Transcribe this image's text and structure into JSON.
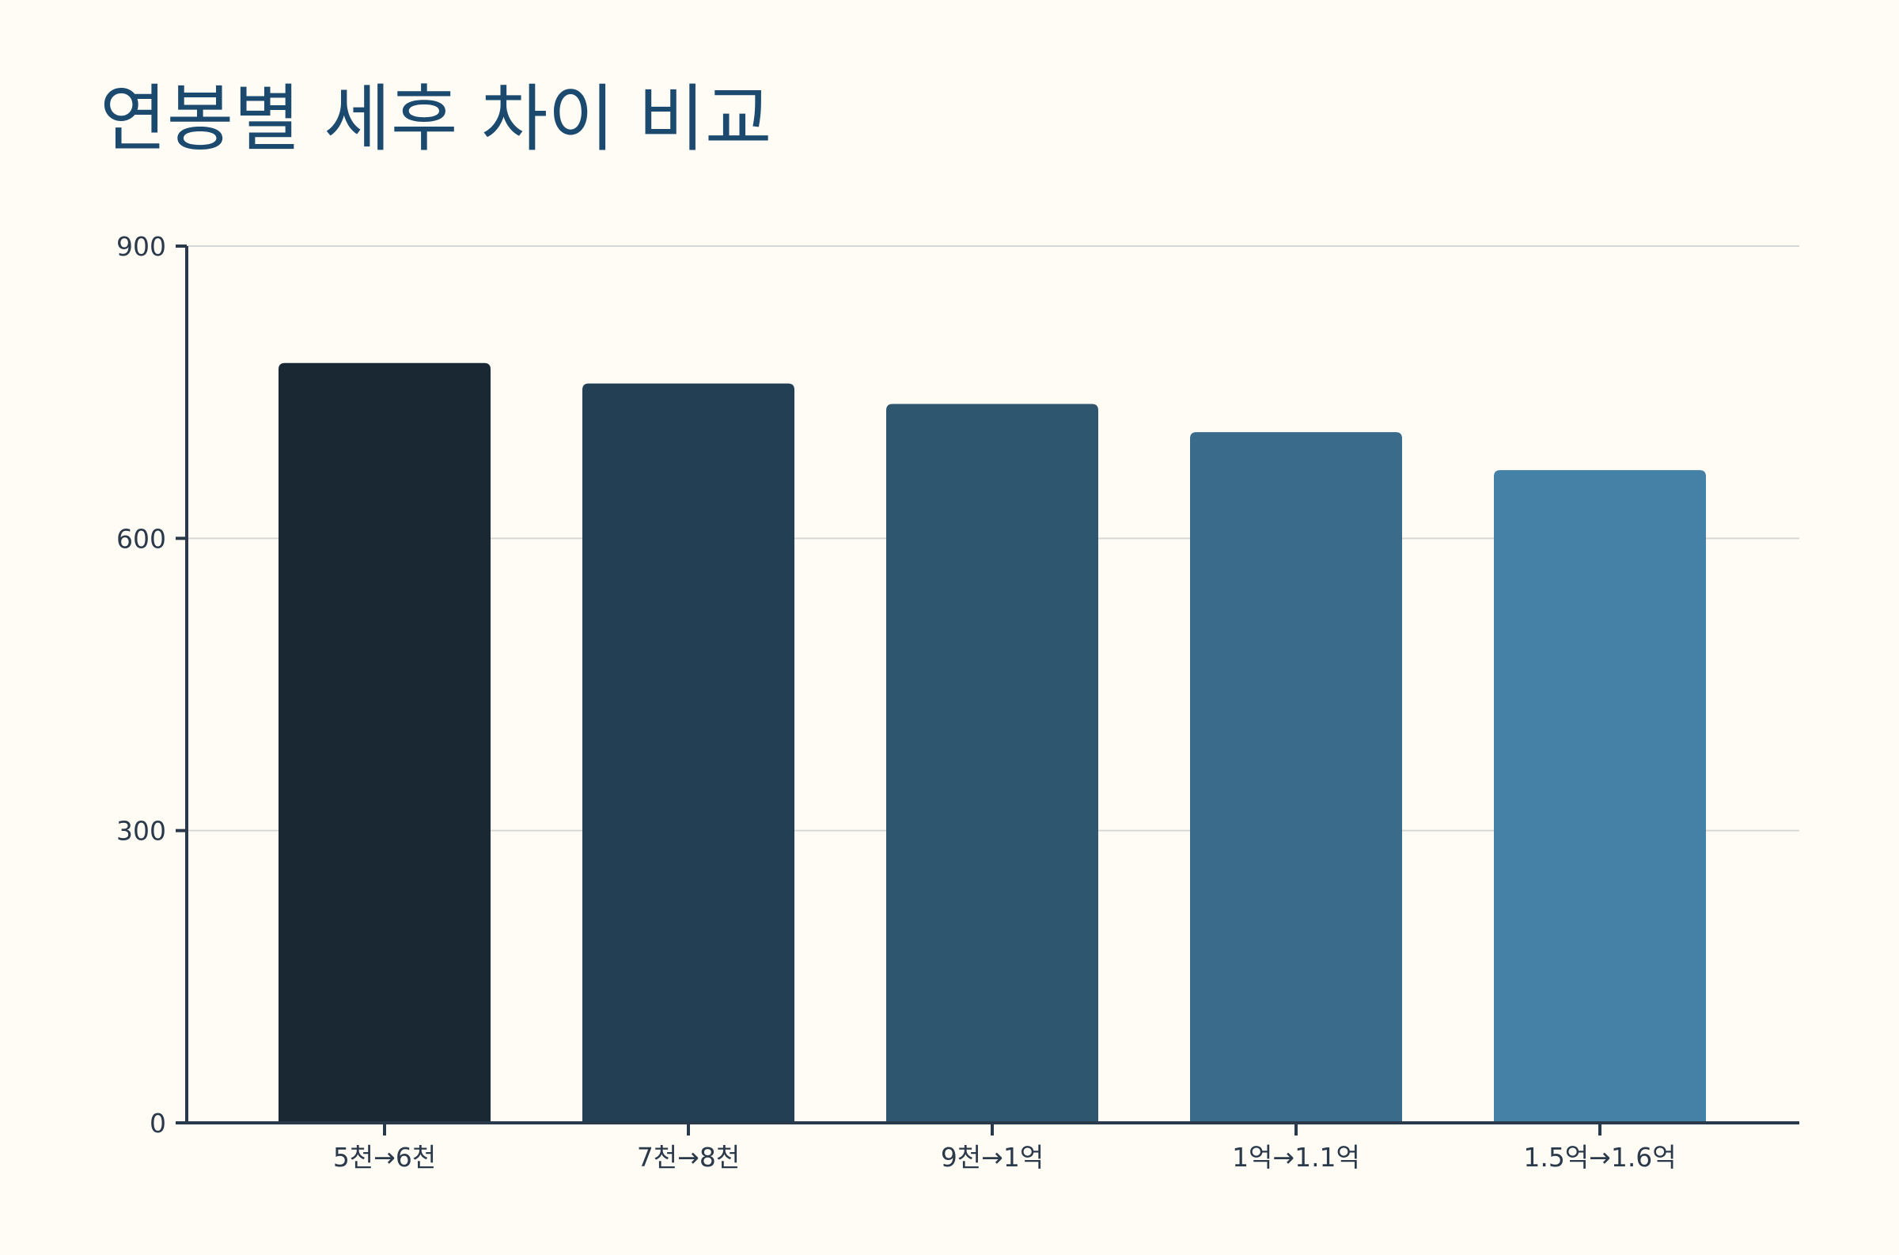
{
  "chart_data": {
    "type": "bar",
    "title": "연봉별 세후 차이 비교",
    "xlabel": "",
    "ylabel": "",
    "categories": [
      "5천→6천",
      "7천→8천",
      "9천→1억",
      "1억→1.1억",
      "1.5억→1.6억"
    ],
    "values": [
      780,
      759,
      738,
      709,
      670
    ],
    "ylim": [
      0,
      900
    ],
    "yticks": [
      "0",
      "300",
      "600",
      "900"
    ],
    "grid": true,
    "legend": "none",
    "colors": [
      "#1a2833",
      "#233f54",
      "#2e566f",
      "#3a6b8b",
      "#4580a6"
    ]
  },
  "colors": {
    "background": "#fffcf5",
    "title": "#1b4a6e",
    "axis": "#2b3a4a",
    "grid": "#d6d8d6"
  }
}
